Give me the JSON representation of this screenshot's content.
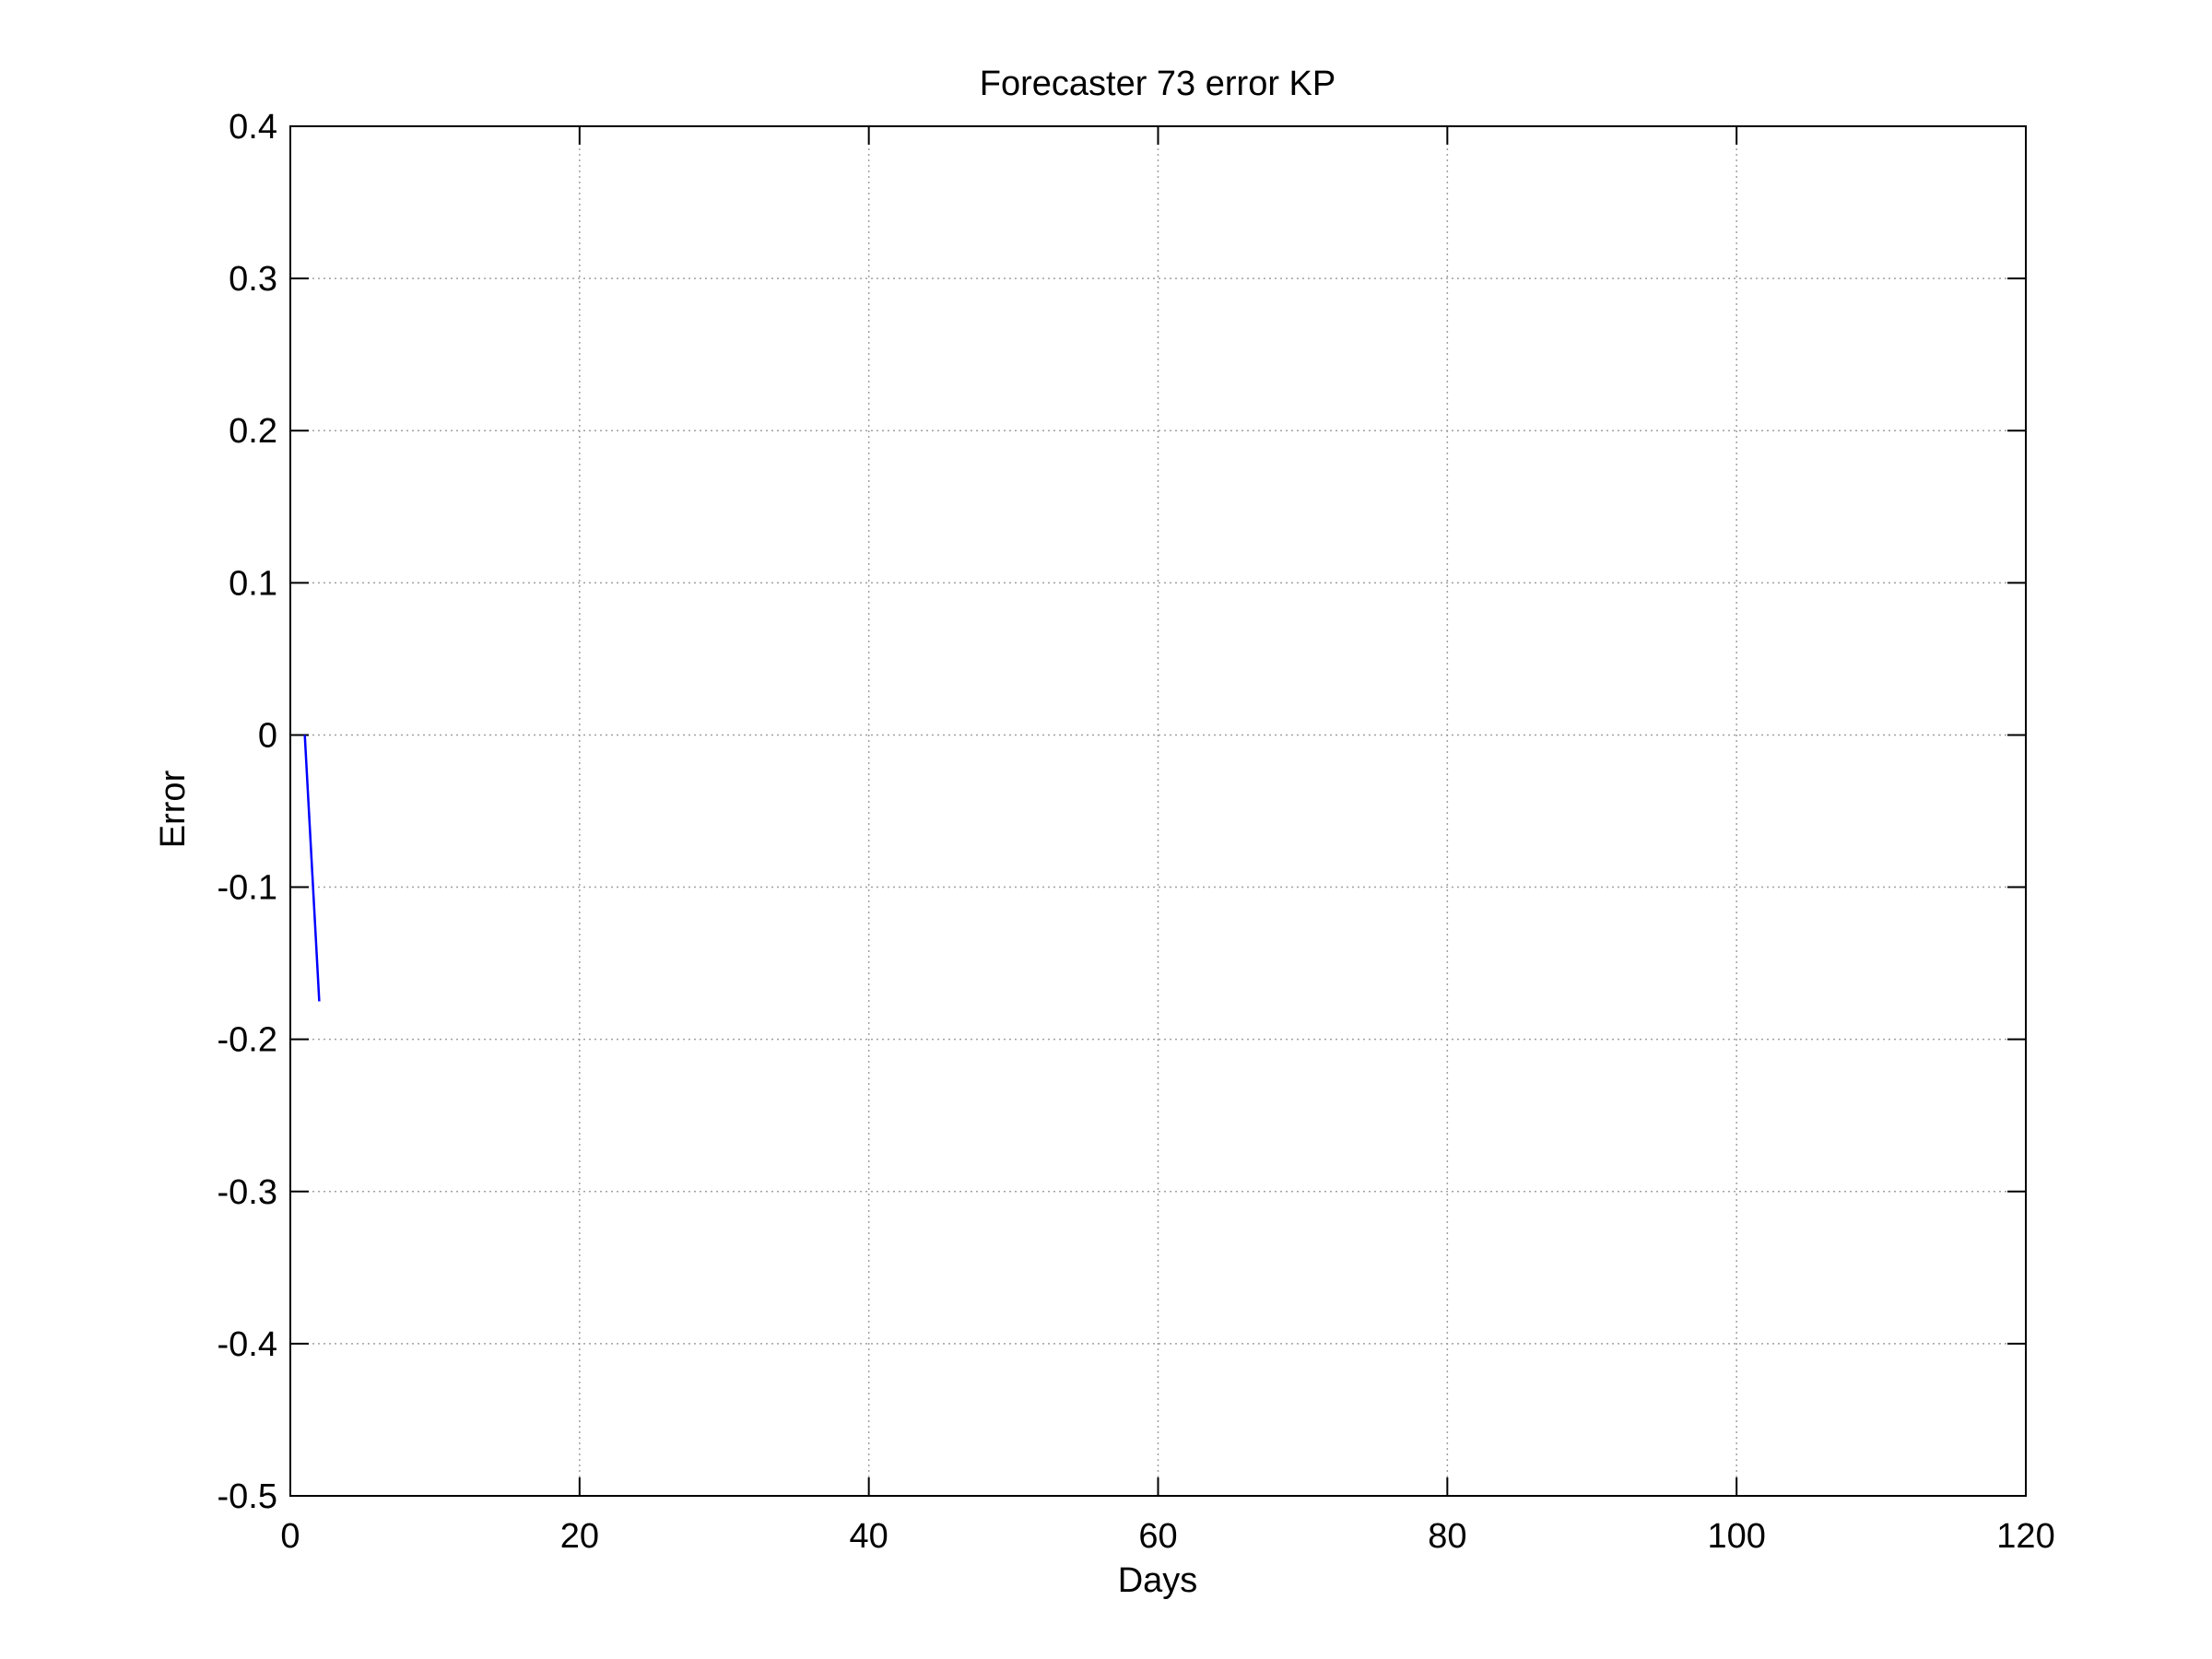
{
  "chart_data": {
    "type": "line",
    "title": "Forecaster 73 error  KP",
    "xlabel": "Days",
    "ylabel": "Error",
    "xlim": [
      0,
      120
    ],
    "ylim": [
      -0.5,
      0.4
    ],
    "xticks": [
      0,
      20,
      40,
      60,
      80,
      100,
      120
    ],
    "yticks": [
      -0.5,
      -0.4,
      -0.3,
      -0.2,
      -0.1,
      0,
      0.1,
      0.2,
      0.3,
      0.4
    ],
    "xtick_labels": [
      "0",
      "20",
      "40",
      "60",
      "80",
      "100",
      "120"
    ],
    "ytick_labels": [
      "-0.5",
      "-0.4",
      "-0.3",
      "-0.2",
      "-0.1",
      "0",
      "0.1",
      "0.2",
      "0.3",
      "0.4"
    ],
    "grid": true,
    "series": [
      {
        "color": "#0000ff",
        "x": [
          1,
          2
        ],
        "y": [
          0.0,
          -0.175
        ]
      }
    ]
  }
}
